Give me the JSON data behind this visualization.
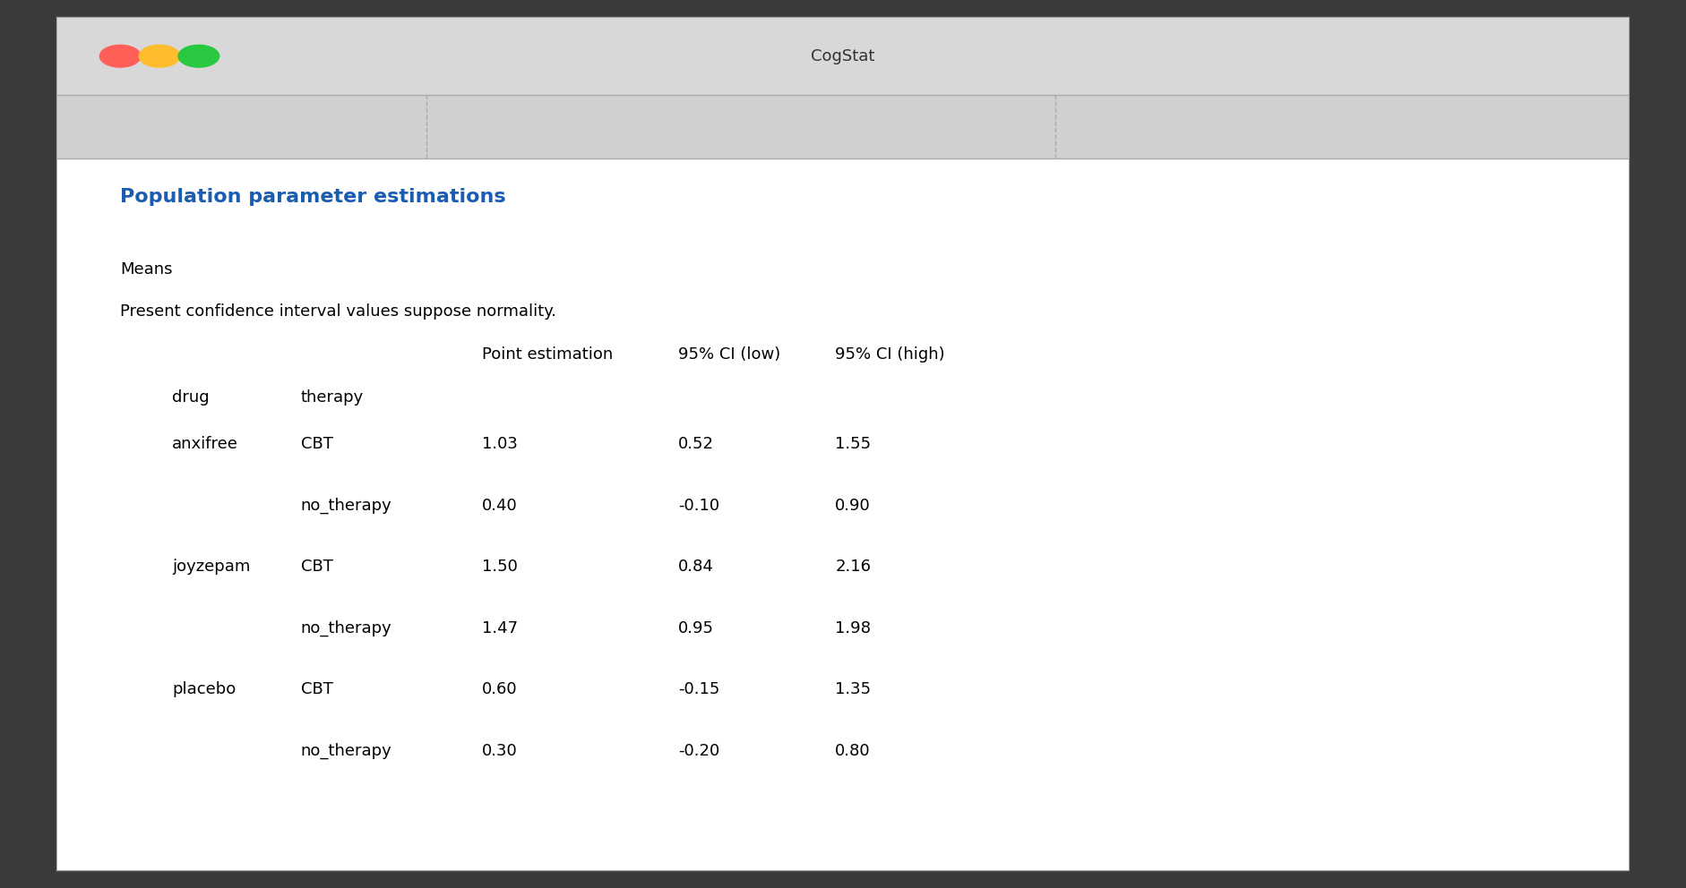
{
  "title": "CogStat",
  "section_title": "Population parameter estimations",
  "section_title_color": "#1a5cb0",
  "subtitle1": "Means",
  "subtitle2": "Present confidence interval values suppose normality.",
  "col_headers": [
    "Point estimation",
    "95% CI (low)",
    "95% CI (high)"
  ],
  "row_header1": "drug",
  "row_header2": "therapy",
  "rows": [
    {
      "drug": "anxifree",
      "therapy": "CBT",
      "point": "1.03",
      "ci_low": "0.52",
      "ci_high": "1.55"
    },
    {
      "drug": "",
      "therapy": "no_therapy",
      "point": "0.40",
      "ci_low": "-0.10",
      "ci_high": "0.90"
    },
    {
      "drug": "joyzepam",
      "therapy": "CBT",
      "point": "1.50",
      "ci_low": "0.84",
      "ci_high": "2.16"
    },
    {
      "drug": "",
      "therapy": "no_therapy",
      "point": "1.47",
      "ci_low": "0.95",
      "ci_high": "1.98"
    },
    {
      "drug": "placebo",
      "therapy": "CBT",
      "point": "0.60",
      "ci_low": "-0.15",
      "ci_high": "1.35"
    },
    {
      "drug": "",
      "therapy": "no_therapy",
      "point": "0.30",
      "ci_low": "-0.20",
      "ci_high": "0.80"
    }
  ],
  "outer_bg": "#3a3a3a",
  "window_bg": "#ececec",
  "titlebar_bg": "#d8d8d8",
  "toolbar_bg": "#d0d0d0",
  "content_bg": "#ffffff",
  "border_color": "#aaaaaa",
  "button_colors": [
    "#ff5f57",
    "#ffbd2e",
    "#28c940"
  ],
  "font_size_title": 13,
  "font_size_section": 16,
  "font_size_body": 13
}
